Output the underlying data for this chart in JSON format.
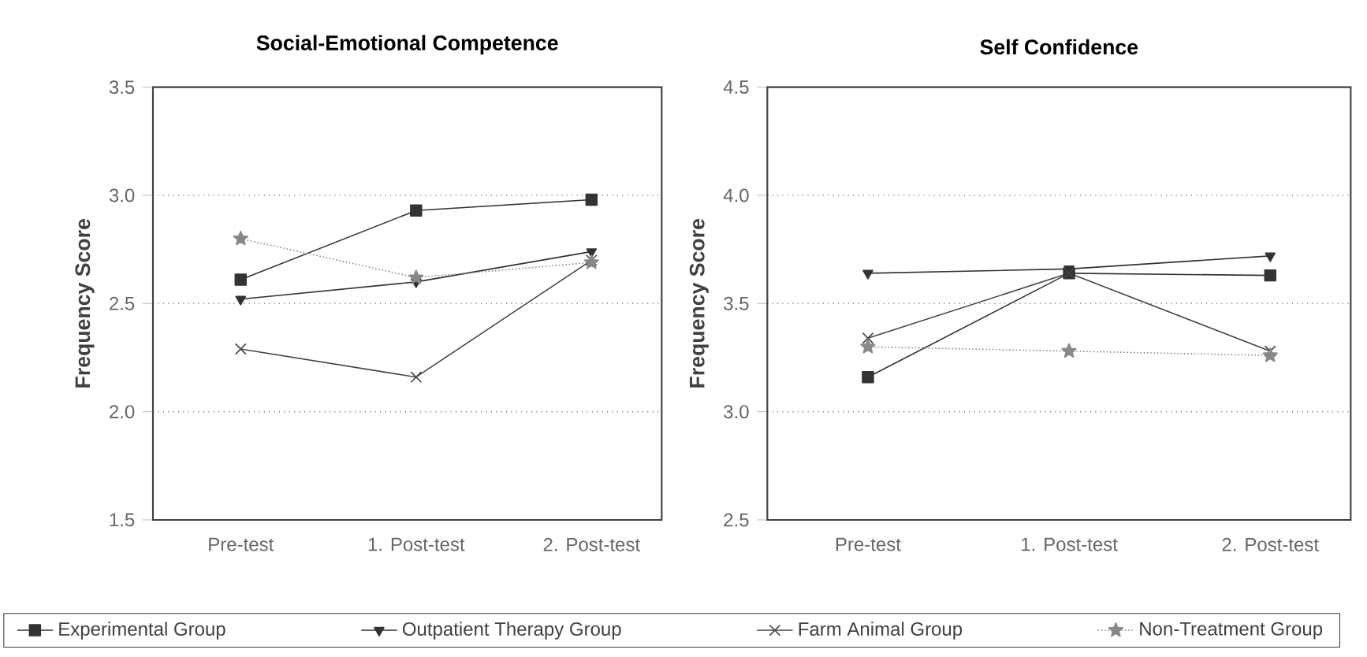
{
  "chart_data": [
    {
      "type": "line",
      "title": "Social-Emotional Competence",
      "ylabel": "Frequency Score",
      "categories": [
        "Pre-test",
        "1. Post-test",
        "2. Post-test"
      ],
      "ylim": [
        1.5,
        3.5
      ],
      "yticks": [
        1.5,
        {
          "value": 2,
          "label": "2.0"
        },
        2.5,
        {
          "value": 3,
          "label": "3.0"
        },
        3.5
      ],
      "grid": "y",
      "legend": "bottom",
      "series": [
        {
          "name": "Experimental Group",
          "color": "#333333",
          "marker": "square",
          "line_style": "solid",
          "values": [
            2.61,
            2.93,
            2.98
          ]
        },
        {
          "name": "Outpatient Therapy Group",
          "color": "#333333",
          "marker": "triangle",
          "line_style": "solid",
          "values": [
            2.52,
            2.6,
            2.74
          ]
        },
        {
          "name": "Farm Animal Group",
          "color": "#444444",
          "marker": "cross",
          "line_style": "solid",
          "values": [
            2.29,
            2.16,
            2.7
          ]
        },
        {
          "name": "Non-Treatment Group",
          "color": "#888888",
          "marker": "star",
          "line_style": "dotted",
          "values": [
            2.8,
            2.62,
            2.69
          ]
        }
      ]
    },
    {
      "type": "line",
      "title": "Self Confidence",
      "ylabel": "Frequency Score",
      "categories": [
        "Pre-test",
        "1. Post-test",
        "2. Post-test"
      ],
      "ylim": [
        2.5,
        4.5
      ],
      "yticks": [
        2.5,
        {
          "value": 3,
          "label": "3.0"
        },
        3.5,
        {
          "value": 4,
          "label": "4.0"
        },
        4.5
      ],
      "grid": "y",
      "series": [
        {
          "color": "#333333",
          "marker": "square",
          "line_style": "solid",
          "values": [
            3.16,
            3.64,
            3.63
          ]
        },
        {
          "color": "#333333",
          "marker": "triangle",
          "line_style": "solid",
          "values": [
            3.64,
            3.66,
            3.72
          ]
        },
        {
          "color": "#444444",
          "marker": "cross",
          "line_style": "solid",
          "values": [
            3.34,
            3.64,
            3.28
          ]
        },
        {
          "color": "#888888",
          "marker": "star",
          "line_style": "dotted",
          "values": [
            3.3,
            3.28,
            3.26
          ]
        }
      ]
    }
  ]
}
